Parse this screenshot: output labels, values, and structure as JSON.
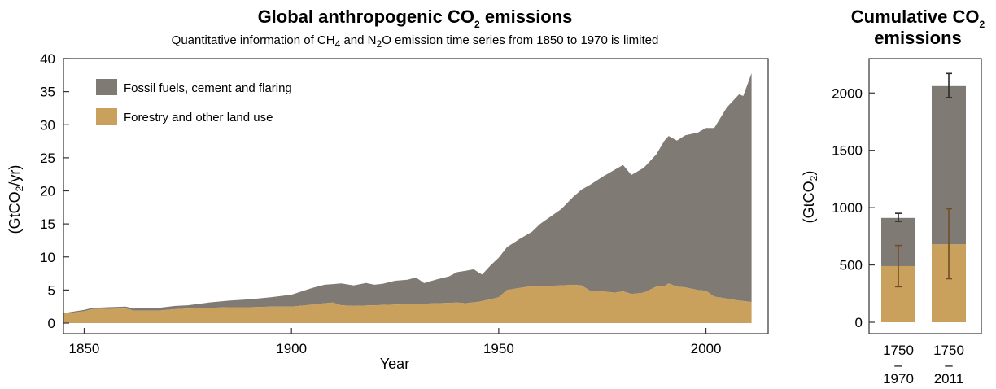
{
  "colors": {
    "fossil": "#7f7a74",
    "land": "#c9a05c",
    "err_fossil": "#2b2b2b",
    "err_land": "#6f4d26"
  },
  "chart_data": [
    {
      "type": "area",
      "stacked": true,
      "title_main": "Global anthropogenic CO",
      "title_sub": "2",
      "title_tail": " emissions",
      "subtitle_parts": [
        "Quantitative information of CH",
        "4",
        " and N",
        "2",
        "O emission time series from 1850 to 1970 is limited"
      ],
      "xlabel": "Year",
      "ylabel_main": "(GtCO",
      "ylabel_sub": "2",
      "ylabel_tail": "/yr)",
      "xlim": [
        1845,
        2015
      ],
      "ylim": [
        0,
        40
      ],
      "xticks": [
        1850,
        1900,
        1950,
        2000
      ],
      "yticks": [
        0,
        5,
        10,
        15,
        20,
        25,
        30,
        35,
        40
      ],
      "grid": false,
      "legend_position": "top-left",
      "series": [
        {
          "name": "Forestry and other land use",
          "color": "#c9a05c",
          "x": [
            1845,
            1850,
            1852,
            1860,
            1862,
            1868,
            1872,
            1875,
            1880,
            1885,
            1890,
            1895,
            1900,
            1905,
            1908,
            1910,
            1912,
            1915,
            1920,
            1925,
            1930,
            1935,
            1940,
            1942,
            1945,
            1948,
            1950,
            1952,
            1955,
            1958,
            1960,
            1965,
            1968,
            1970,
            1972,
            1975,
            1978,
            1980,
            1982,
            1985,
            1988,
            1990,
            1991,
            1993,
            1995,
            1998,
            2000,
            2002,
            2005,
            2008,
            2011
          ],
          "y": [
            1.4,
            1.8,
            2.1,
            2.2,
            1.9,
            1.9,
            2.1,
            2.2,
            2.3,
            2.4,
            2.4,
            2.5,
            2.5,
            2.8,
            3.0,
            3.1,
            2.7,
            2.6,
            2.7,
            2.8,
            2.9,
            3.0,
            3.1,
            3.0,
            3.2,
            3.6,
            3.9,
            5.0,
            5.3,
            5.6,
            5.6,
            5.7,
            5.8,
            5.7,
            4.9,
            4.8,
            4.6,
            4.8,
            4.4,
            4.6,
            5.5,
            5.6,
            6.0,
            5.5,
            5.4,
            5.0,
            4.9,
            4.0,
            3.7,
            3.4,
            3.2
          ]
        },
        {
          "name": "Fossil fuels, cement and flaring",
          "color": "#7f7a74",
          "x": [
            1845,
            1850,
            1852,
            1860,
            1862,
            1868,
            1872,
            1875,
            1880,
            1885,
            1890,
            1895,
            1900,
            1905,
            1908,
            1910,
            1912,
            1915,
            1918,
            1920,
            1922,
            1925,
            1928,
            1930,
            1932,
            1935,
            1938,
            1940,
            1942,
            1944,
            1945,
            1946,
            1948,
            1950,
            1952,
            1955,
            1958,
            1960,
            1965,
            1968,
            1970,
            1972,
            1975,
            1978,
            1980,
            1982,
            1985,
            1988,
            1990,
            1991,
            1993,
            1995,
            1998,
            2000,
            2002,
            2005,
            2008,
            2009,
            2011
          ],
          "y": [
            0.1,
            0.2,
            0.2,
            0.3,
            0.3,
            0.4,
            0.5,
            0.5,
            0.8,
            1.0,
            1.2,
            1.4,
            1.8,
            2.5,
            2.8,
            2.8,
            3.3,
            3.1,
            3.4,
            3.1,
            3.2,
            3.6,
            3.7,
            4.0,
            3.1,
            3.6,
            4.0,
            4.6,
            4.9,
            5.0,
            4.5,
            4.0,
            5.1,
            6.0,
            6.5,
            7.4,
            8.2,
            9.4,
            11.5,
            13.3,
            14.5,
            16.0,
            17.3,
            18.6,
            19.1,
            18.0,
            18.9,
            20.0,
            22.0,
            22.3,
            22.1,
            23.0,
            23.8,
            24.6,
            25.5,
            28.9,
            31.2,
            31.0,
            34.6
          ]
        }
      ]
    },
    {
      "type": "bar",
      "stacked": true,
      "title_line1_main": "Cumulative CO",
      "title_line1_sub": "2",
      "title_line2": "emissions",
      "ylabel_main": "(GtCO",
      "ylabel_sub": "2",
      "ylabel_tail": ")",
      "ylim": [
        0,
        2300
      ],
      "yticks": [
        0,
        500,
        1000,
        1500,
        2000
      ],
      "categories": [
        {
          "top": "1750",
          "dash": "–",
          "bottom": "1970"
        },
        {
          "top": "1750",
          "dash": "–",
          "bottom": "2011"
        }
      ],
      "series": [
        {
          "name": "Forestry and other land use",
          "values": [
            490,
            680
          ],
          "error": [
            [
              310,
              670
            ],
            [
              380,
              990
            ]
          ]
        },
        {
          "name": "Fossil fuels, cement and flaring",
          "values": [
            420,
            1380
          ],
          "error": [
            [
              880,
              950
            ],
            [
              1960,
              2170
            ]
          ]
        }
      ]
    }
  ]
}
